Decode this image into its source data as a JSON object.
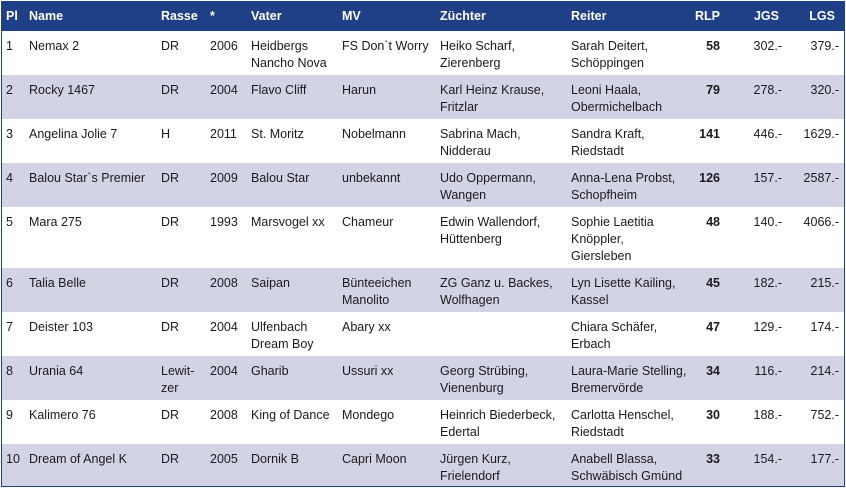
{
  "headers": {
    "pl": "Pl",
    "name": "Name",
    "rasse": "Rasse",
    "year": "*",
    "vater": "Vater",
    "mv": "MV",
    "zuechter": "Züchter",
    "reiter": "Reiter",
    "rlp": "RLP",
    "jgs": "JGS",
    "lgs": "LGS"
  },
  "rows": [
    {
      "pl": "1",
      "name": "Nemax 2",
      "rasse": "DR",
      "year": "2006",
      "vater": "Heidbergs\nNancho Nova",
      "mv": "FS Don`t Worry",
      "zuechter": "Heiko Scharf,\nZierenberg",
      "reiter": "Sarah Deitert,\nSchöppingen",
      "rlp": "58",
      "jgs": "302.-",
      "lgs": "379.-"
    },
    {
      "pl": "2",
      "name": "Rocky 1467",
      "rasse": "DR",
      "year": "2004",
      "vater": "Flavo Cliff",
      "mv": "Harun",
      "zuechter": "Karl Heinz Krause,\nFritzlar",
      "reiter": "Leoni Haala,\nObermichelbach",
      "rlp": "79",
      "jgs": "278.-",
      "lgs": "320.-"
    },
    {
      "pl": "3",
      "name": "Angelina Jolie 7",
      "rasse": "H",
      "year": "2011",
      "vater": "St. Moritz",
      "mv": "Nobelmann",
      "zuechter": "Sabrina Mach,\nNidderau",
      "reiter": "Sandra Kraft,\nRiedstadt",
      "rlp": "141",
      "jgs": "446.-",
      "lgs": "1629.-"
    },
    {
      "pl": "4",
      "name": "Balou Star`s Premier",
      "rasse": "DR",
      "year": "2009",
      "vater": "Balou Star",
      "mv": "unbekannt",
      "zuechter": "Udo Oppermann,\nWangen",
      "reiter": "Anna-Lena Probst,\nSchopfheim",
      "rlp": "126",
      "jgs": "157.-",
      "lgs": "2587.-"
    },
    {
      "pl": "5",
      "name": "Mara 275",
      "rasse": "DR",
      "year": "1993",
      "vater": "Marsvogel xx",
      "mv": "Chameur",
      "zuechter": "Edwin Wallendorf,\nHüttenberg",
      "reiter": "Sophie Laetitia\nKnöppler,\nGiersleben",
      "rlp": "48",
      "jgs": "140.-",
      "lgs": "4066.-"
    },
    {
      "pl": "6",
      "name": "Talia Belle",
      "rasse": "DR",
      "year": "2008",
      "vater": "Saipan",
      "mv": "Bünteeichen\nManolito",
      "zuechter": "ZG Ganz u. Backes,\nWolfhagen",
      "reiter": "Lyn Lisette Kailing,\nKassel",
      "rlp": "45",
      "jgs": "182.-",
      "lgs": "215.-"
    },
    {
      "pl": "7",
      "name": "Deister 103",
      "rasse": "DR",
      "year": "2004",
      "vater": "Ulfenbach\nDream Boy",
      "mv": "Abary xx",
      "zuechter": "",
      "reiter": "Chiara Schäfer,\nErbach",
      "rlp": "47",
      "jgs": "129.-",
      "lgs": "174.-"
    },
    {
      "pl": "8",
      "name": "Urania 64",
      "rasse": "Lewit-\nzer",
      "year": "2004",
      "vater": "Gharib",
      "mv": "Ussuri xx",
      "zuechter": "Georg Strübing,\nVienenburg",
      "reiter": "Laura-Marie Stelling,\nBremervörde",
      "rlp": "34",
      "jgs": "116.-",
      "lgs": "214.-"
    },
    {
      "pl": "9",
      "name": "Kalimero 76",
      "rasse": "DR",
      "year": "2008",
      "vater": "King of Dance",
      "mv": "Mondego",
      "zuechter": "Heinrich Biederbeck,\nEdertal",
      "reiter": "Carlotta Henschel,\nRiedstadt",
      "rlp": "30",
      "jgs": "188.-",
      "lgs": "752.-"
    },
    {
      "pl": "10",
      "name": "Dream of Angel K",
      "rasse": "DR",
      "year": "2005",
      "vater": "Dornik B",
      "mv": "Capri Moon",
      "zuechter": "Jürgen Kurz,\nFrielendorf",
      "reiter": "Anabell Blassa,\nSchwäbisch Gmünd",
      "rlp": "33",
      "jgs": "154.-",
      "lgs": "177.-"
    }
  ]
}
